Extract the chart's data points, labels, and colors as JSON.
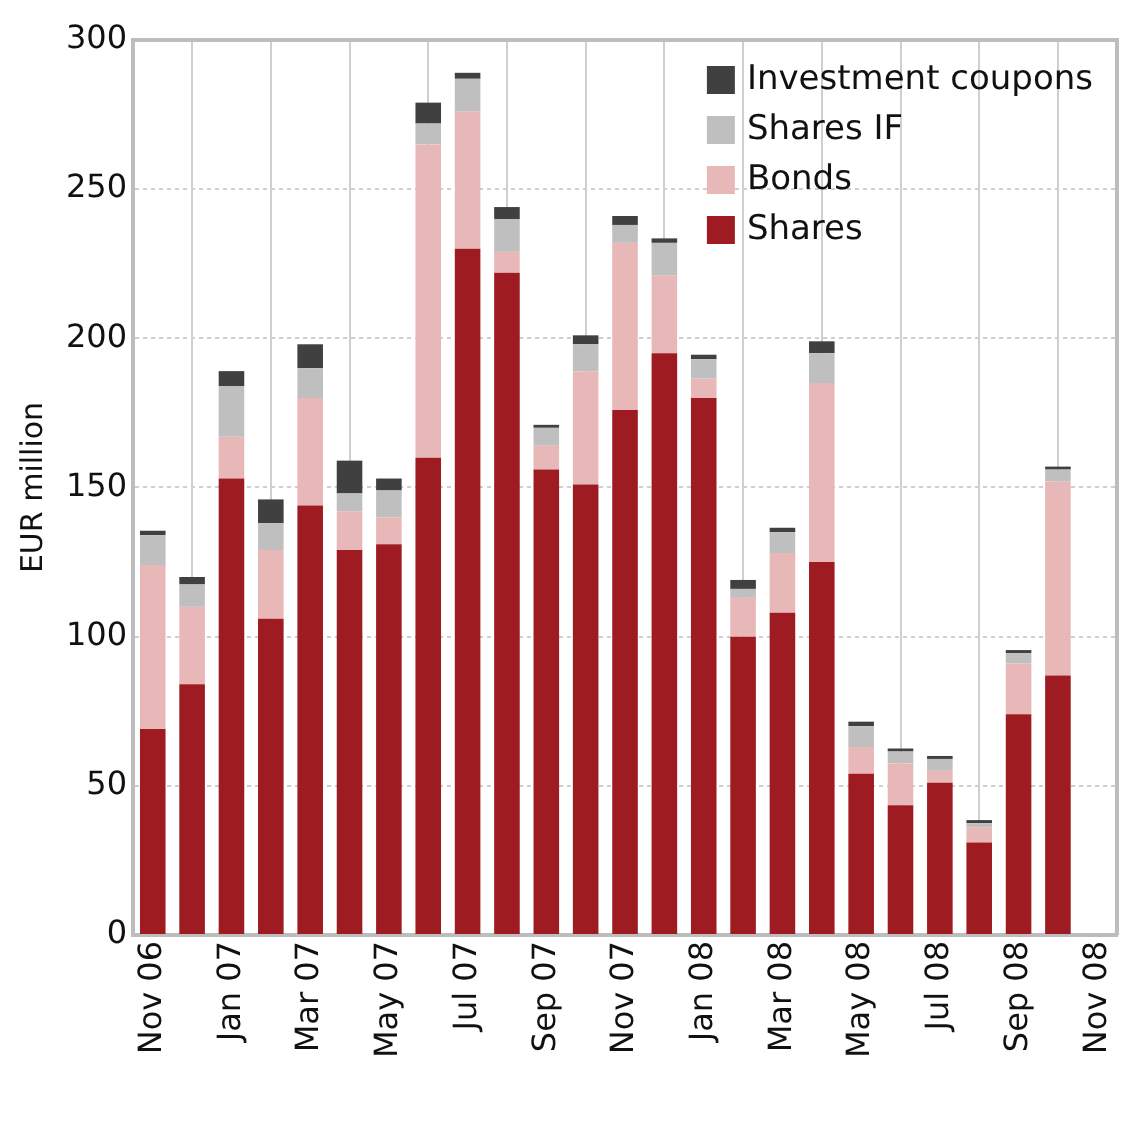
{
  "chart_data": {
    "type": "bar",
    "stacked": true,
    "ylabel": "EUR million",
    "categories": [
      "Nov 06",
      null,
      "Jan 07",
      null,
      "Mar 07",
      null,
      "May 07",
      null,
      "Jul 07",
      null,
      "Sep 07",
      null,
      "Nov 07",
      null,
      "Jan 08",
      null,
      "Mar 08",
      null,
      "May 08",
      null,
      "Jul 08",
      null,
      "Sep 08",
      null,
      "Nov 08"
    ],
    "series": [
      {
        "name": "Shares",
        "color": "#9e1b22",
        "values": [
          69,
          84,
          153,
          106,
          144,
          129,
          131,
          160,
          230,
          222,
          156,
          151,
          176,
          195,
          180,
          100,
          108,
          125,
          54,
          43.5,
          51,
          31,
          74,
          87,
          null
        ]
      },
      {
        "name": "Bonds",
        "color": "#e8b8b8",
        "values": [
          55,
          26,
          14,
          23,
          36,
          13,
          9,
          105,
          46,
          7,
          8,
          38,
          56,
          26,
          6.5,
          13,
          20,
          60,
          9,
          14,
          4,
          5,
          17,
          65,
          null
        ]
      },
      {
        "name": "Shares IF",
        "color": "#bfbfbf",
        "values": [
          10,
          7.5,
          17,
          9,
          10,
          6,
          9,
          7,
          11,
          11,
          6,
          9,
          6,
          11,
          6.5,
          3,
          7,
          10,
          7,
          4,
          4,
          1.5,
          3.5,
          4,
          null
        ]
      },
      {
        "name": "Investment coupons",
        "color": "#404040",
        "values": [
          1.5,
          2.5,
          5,
          8,
          8,
          11,
          4,
          7,
          2,
          4,
          1,
          3,
          3,
          1.5,
          1.5,
          3,
          1.5,
          4,
          1.5,
          1,
          1,
          1,
          1,
          1,
          null
        ]
      }
    ],
    "ylim": [
      0,
      300
    ],
    "yticks": [
      0,
      50,
      100,
      150,
      200,
      250,
      300
    ],
    "grid": true,
    "legend": "top right"
  }
}
